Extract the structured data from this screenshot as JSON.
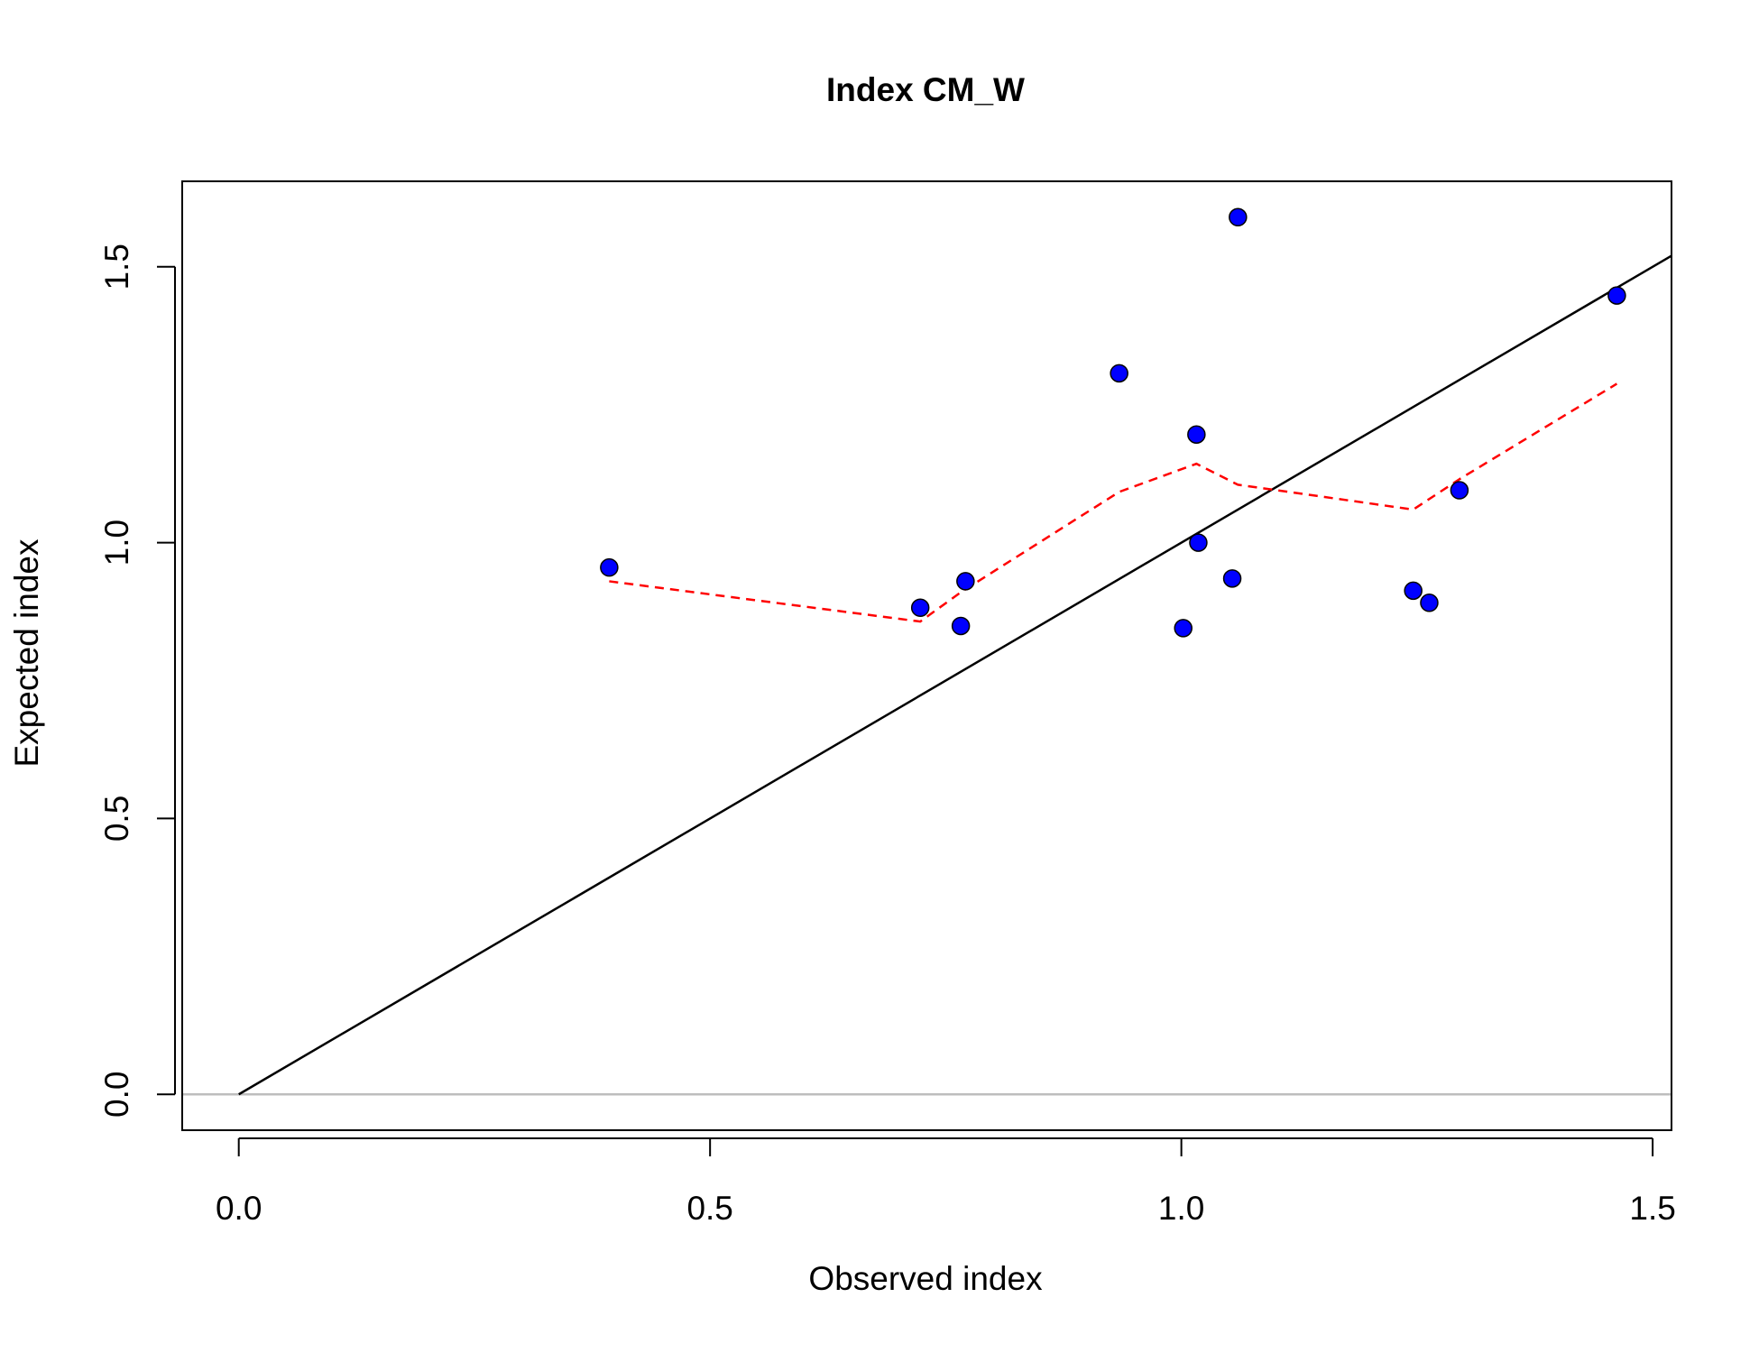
{
  "chart_data": {
    "type": "scatter",
    "title": "Index CM_W",
    "xlabel": "Observed index",
    "ylabel": "Expected index",
    "xlim": [
      -0.06,
      1.52
    ],
    "ylim": [
      -0.065,
      1.655
    ],
    "x_ticks": [
      {
        "value": 0.0,
        "label": "0.0"
      },
      {
        "value": 0.5,
        "label": "0.5"
      },
      {
        "value": 1.0,
        "label": "1.0"
      },
      {
        "value": 1.5,
        "label": "1.5"
      }
    ],
    "y_ticks": [
      {
        "value": 0.0,
        "label": "0.0"
      },
      {
        "value": 0.5,
        "label": "0.5"
      },
      {
        "value": 1.0,
        "label": "1.0"
      },
      {
        "value": 1.5,
        "label": "1.5"
      }
    ],
    "grid": false,
    "colors": {
      "points": "#0000ff",
      "point_outline": "#000000",
      "identity_line": "#000000",
      "smooth_line": "#ff0000",
      "zero_line": "#bebebe"
    },
    "points": [
      {
        "x": 0.393,
        "y": 0.955
      },
      {
        "x": 0.723,
        "y": 0.882
      },
      {
        "x": 0.766,
        "y": 0.849
      },
      {
        "x": 0.771,
        "y": 0.93
      },
      {
        "x": 0.934,
        "y": 1.307
      },
      {
        "x": 1.002,
        "y": 0.845
      },
      {
        "x": 1.016,
        "y": 1.196
      },
      {
        "x": 1.018,
        "y": 1.0
      },
      {
        "x": 1.054,
        "y": 0.935
      },
      {
        "x": 1.06,
        "y": 1.59
      },
      {
        "x": 1.246,
        "y": 0.913
      },
      {
        "x": 1.263,
        "y": 0.891
      },
      {
        "x": 1.295,
        "y": 1.095
      },
      {
        "x": 1.462,
        "y": 1.448
      }
    ],
    "identity_line": {
      "x": [
        0.0,
        1.52
      ],
      "y": [
        0.0,
        1.52
      ]
    },
    "smooth_line": {
      "x": [
        0.393,
        0.723,
        0.766,
        0.934,
        1.016,
        1.06,
        1.246,
        1.295,
        1.462
      ],
      "y": [
        0.93,
        0.857,
        0.91,
        1.092,
        1.143,
        1.105,
        1.06,
        1.115,
        1.288
      ]
    },
    "zero_line": {
      "y": 0.0
    }
  }
}
